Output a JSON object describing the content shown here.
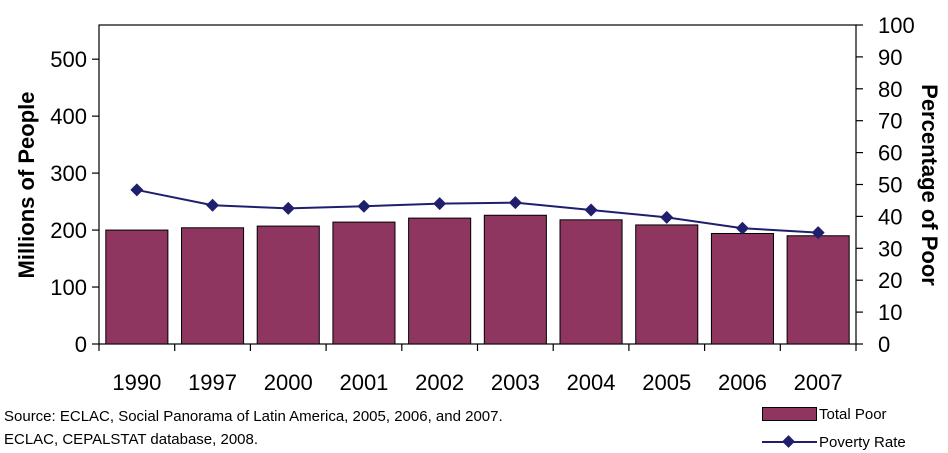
{
  "chart_data": {
    "type": "bar+line",
    "categories": [
      "1990",
      "1997",
      "2000",
      "2001",
      "2002",
      "2003",
      "2004",
      "2005",
      "2006",
      "2007"
    ],
    "series": [
      {
        "name": "Total Poor",
        "type": "bar",
        "axis": "left",
        "values": [
          200,
          204,
          207,
          214,
          221,
          226,
          218,
          209,
          194,
          190
        ]
      },
      {
        "name": "Poverty Rate",
        "type": "line",
        "axis": "right",
        "values": [
          48.3,
          43.5,
          42.5,
          43.2,
          44.0,
          44.3,
          42.0,
          39.7,
          36.3,
          34.9
        ]
      }
    ],
    "ylabel_left": "Millions of People",
    "ylabel_right": "Percentage of Poor",
    "ylim_left": [
      0,
      560
    ],
    "yticks_left": [
      0,
      100,
      200,
      300,
      400,
      500
    ],
    "ylim_right": [
      0,
      100
    ],
    "yticks_right": [
      0,
      10,
      20,
      30,
      40,
      50,
      60,
      70,
      80,
      90,
      100
    ],
    "bar_color": "#8e3560",
    "line_color": "#1f1f6e",
    "grid": false,
    "legend_position": "bottom-right"
  },
  "source_lines": [
    "Source: ECLAC, Social Panorama of Latin America, 2005, 2006, and 2007.",
    "ECLAC, CEPALSTAT database, 2008."
  ]
}
